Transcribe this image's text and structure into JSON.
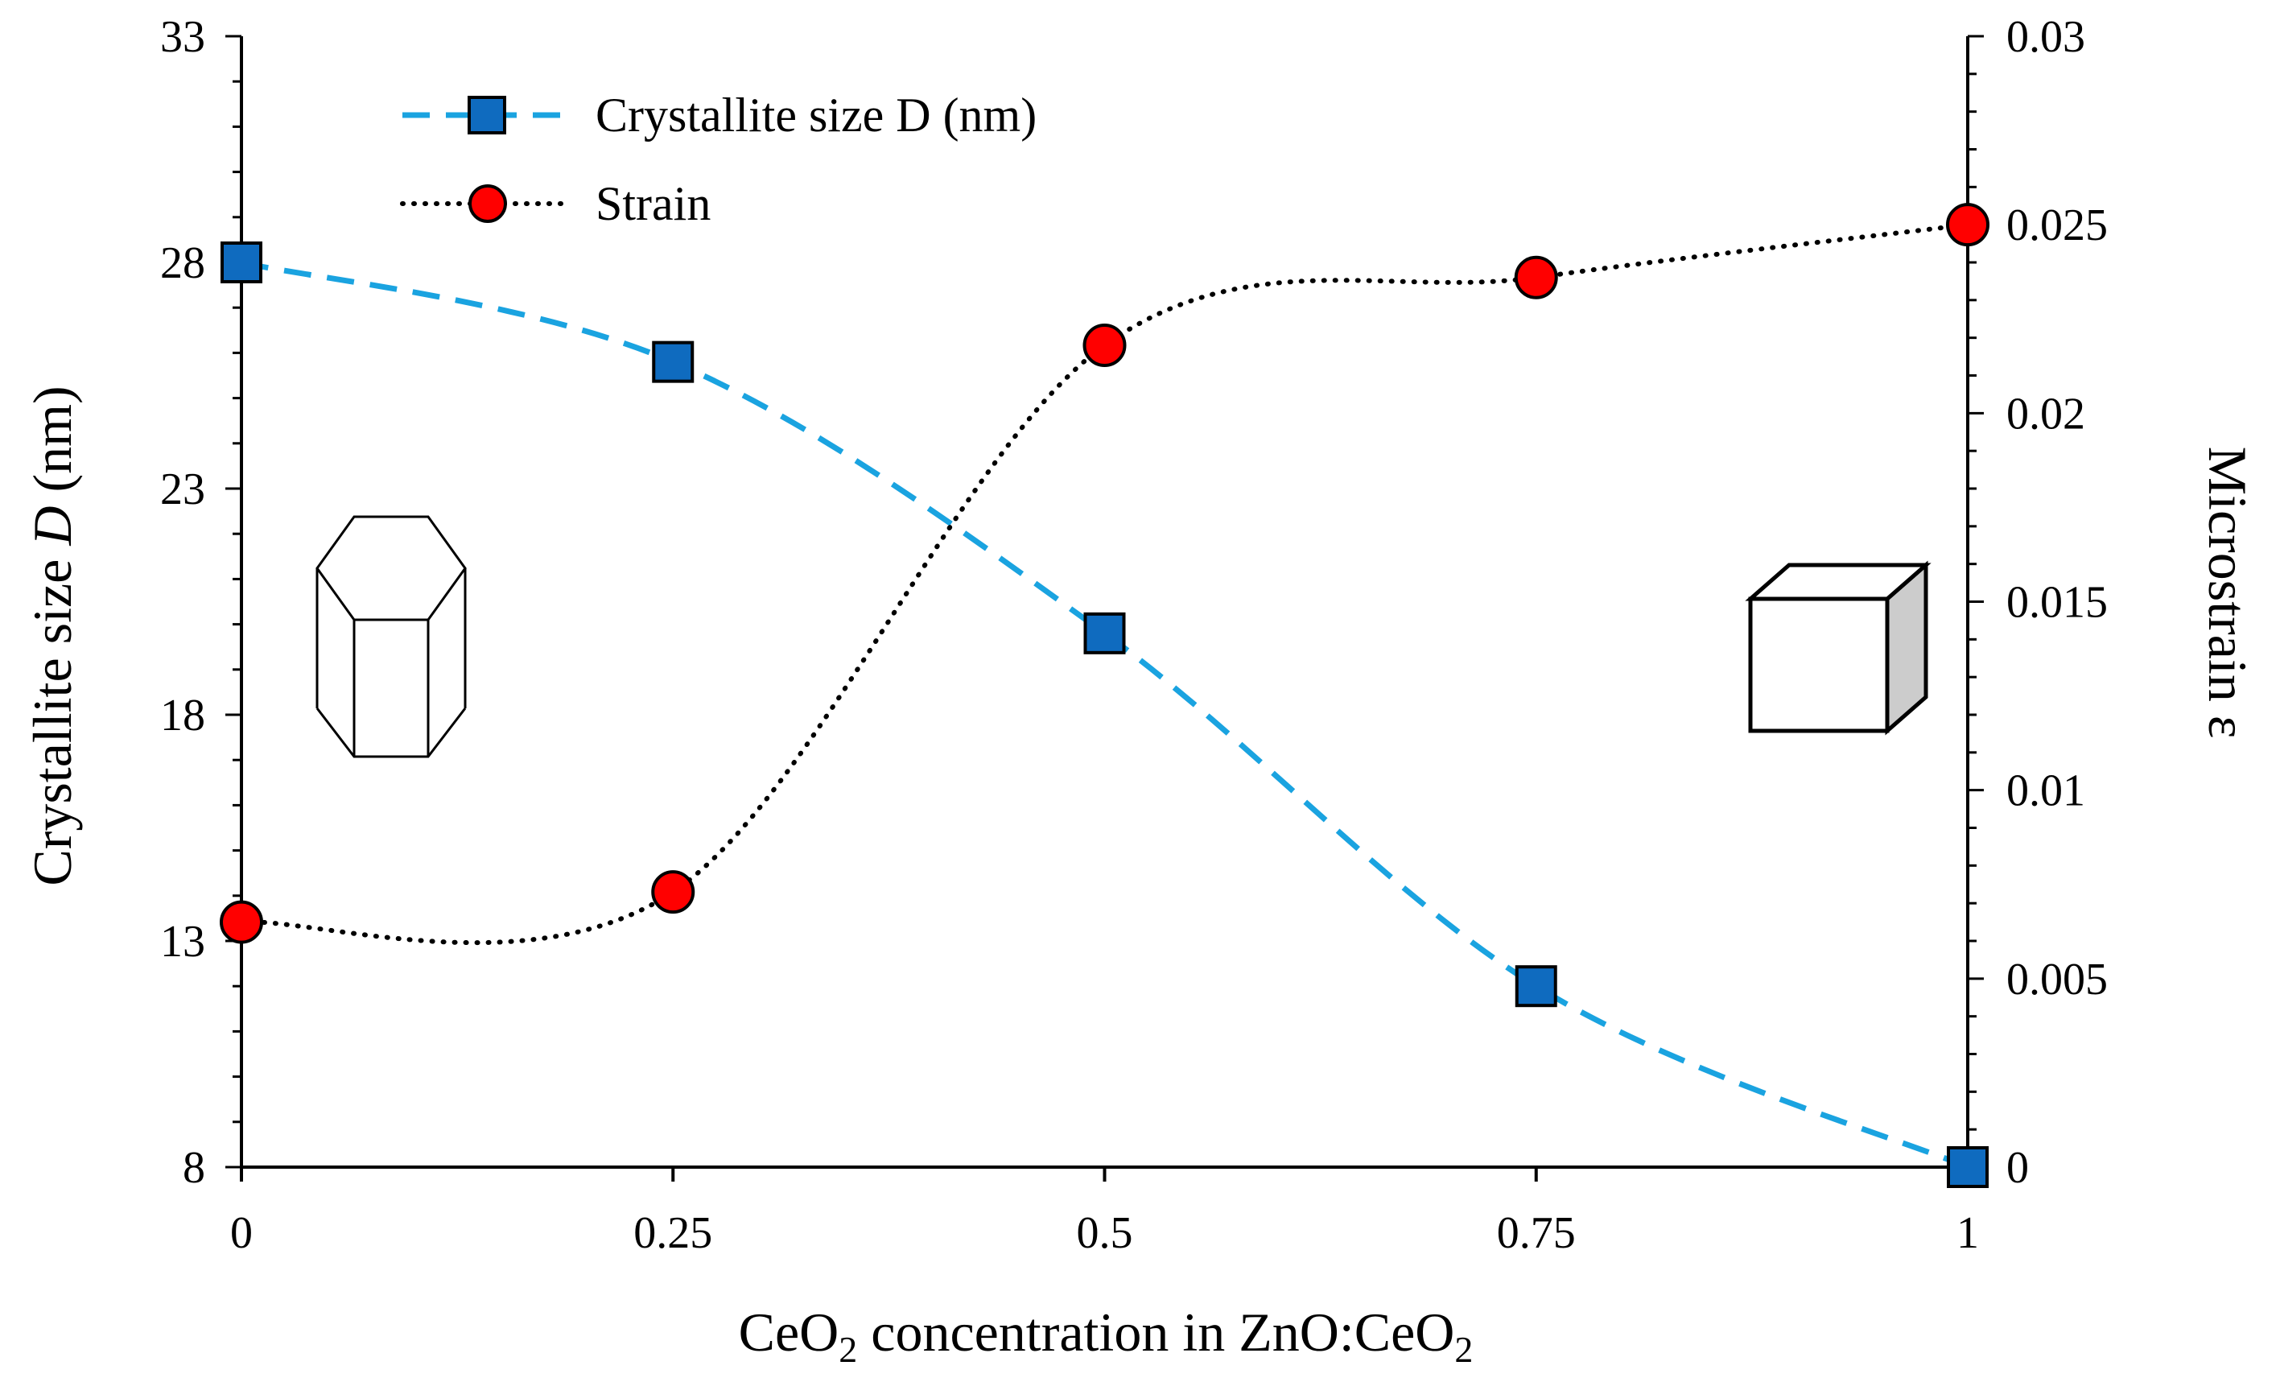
{
  "chart_data": {
    "type": "line",
    "title": "",
    "x": [
      0,
      0.25,
      0.5,
      0.75,
      1
    ],
    "x_tick_labels": [
      "0",
      "0.25",
      "0.5",
      "0.75",
      "1"
    ],
    "xlabel": {
      "pre": "CeO",
      "sub1": "2",
      "mid": " concentration in ZnO:CeO",
      "sub2": "2"
    },
    "xlim": [
      0,
      1
    ],
    "ylabel_left": {
      "pre": "Crystallite size ",
      "italic": "D",
      "post": " (nm)"
    },
    "ylim_left": [
      8,
      33
    ],
    "y_left_ticks": [
      8,
      13,
      18,
      23,
      28,
      33
    ],
    "y_left_tick_labels": [
      "8",
      "13",
      "18",
      "23",
      "28",
      "33"
    ],
    "ylabel_right": "Microstrain ε",
    "ylim_right": [
      0,
      0.03
    ],
    "y_right_ticks": [
      0,
      0.005,
      0.01,
      0.015,
      0.02,
      0.025,
      0.03
    ],
    "y_right_tick_labels": [
      "0",
      "0.005",
      "0.01",
      "0.015",
      "0.02",
      "0.025",
      "0.03"
    ],
    "series": [
      {
        "name": "Crystallite size D (nm)",
        "axis": "left",
        "marker": "square",
        "line": "dashed",
        "color": "#1aa3e0",
        "marker_color": "#0f6bbf",
        "values": [
          28.0,
          25.8,
          19.8,
          12.0,
          8.0
        ]
      },
      {
        "name": "Strain",
        "axis": "right",
        "marker": "circle",
        "line": "dotted",
        "color": "#000000",
        "marker_color": "#ff0000",
        "values": [
          0.0065,
          0.0073,
          0.0218,
          0.0236,
          0.025
        ]
      }
    ],
    "legend_position": "top-left",
    "grid": false
  }
}
